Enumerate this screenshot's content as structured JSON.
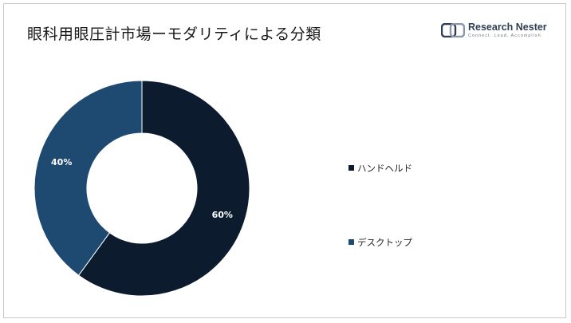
{
  "title": "眼科用眼圧計市場ーモダリティによる分類",
  "logo": {
    "name": "Research Nester",
    "tagline": "Connect. Lead. Accomplish"
  },
  "colors": {
    "handheld": "#0c1c2e",
    "desktop": "#1e4a72",
    "label_text": "#ffffff"
  },
  "chart_data": {
    "type": "pie",
    "donut": true,
    "categories": [
      "ハンドヘルド",
      "デスクトップ"
    ],
    "values": [
      60,
      40
    ],
    "data_labels": [
      "60%",
      "40%"
    ],
    "legend_position": "right"
  },
  "legend": {
    "items": [
      {
        "label": "ハンドヘルド"
      },
      {
        "label": "デスクトップ"
      }
    ]
  }
}
